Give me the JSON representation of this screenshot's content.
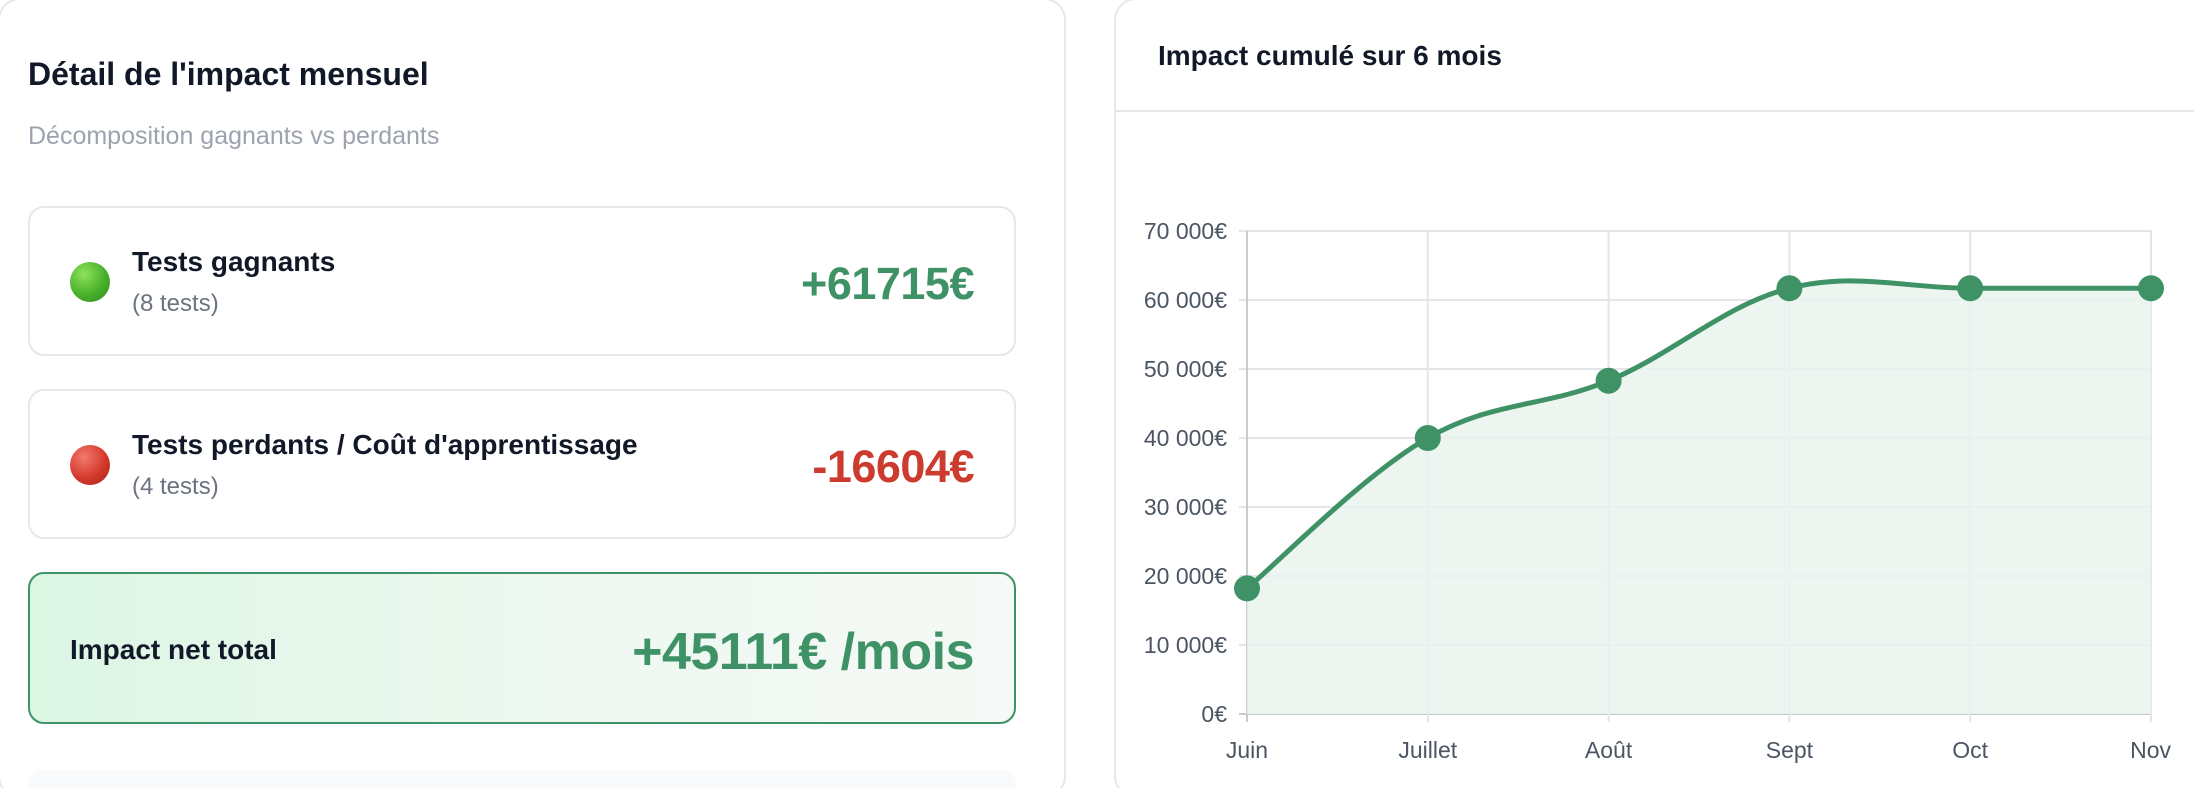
{
  "left": {
    "title": "Détail de l'impact mensuel",
    "subtitle": "Décomposition gagnants vs perdants",
    "winners": {
      "label": "Tests gagnants",
      "count": "(8 tests)",
      "value": "+61715€"
    },
    "losers": {
      "label": "Tests perdants / Coût d'apprentissage",
      "count": "(4 tests)",
      "value": "-16604€"
    },
    "net": {
      "label": "Impact net total",
      "value": "+45111€ /mois"
    }
  },
  "right": {
    "title": "Impact cumulé sur 6 mois"
  },
  "colors": {
    "positive": "#3f9266",
    "negative": "#cd3a2e",
    "area": "#eaf3ee"
  },
  "chart_data": {
    "type": "area",
    "title": "Impact cumulé sur 6 mois",
    "categories": [
      "Juin",
      "Juillet",
      "Août",
      "Sept",
      "Oct",
      "Nov"
    ],
    "values": [
      18200,
      40000,
      48300,
      61700,
      61700,
      61700
    ],
    "ylim": [
      0,
      70000
    ],
    "yticks": [
      0,
      10000,
      20000,
      30000,
      40000,
      50000,
      60000,
      70000
    ],
    "ytick_labels": [
      "0€",
      "10 000€",
      "20 000€",
      "30 000€",
      "40 000€",
      "50 000€",
      "60 000€",
      "70 000€"
    ],
    "grid": true,
    "color": "#3f9266"
  }
}
